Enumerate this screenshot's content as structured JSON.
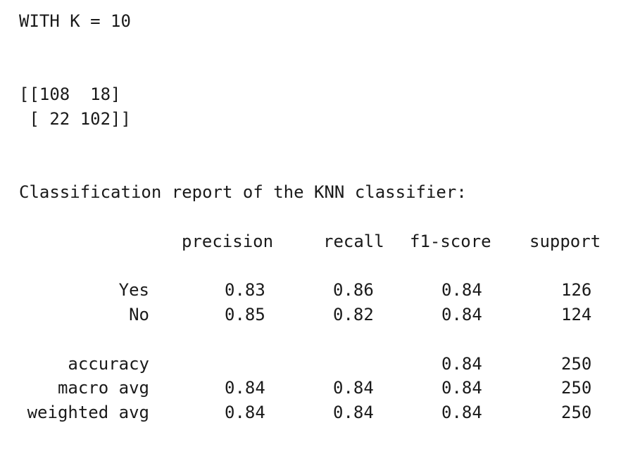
{
  "heading": "WITH K = 10",
  "confusion_matrix": {
    "row1": "[[108  18]",
    "row2": " [ 22 102]]"
  },
  "report_title": "Classification report of the KNN classifier:",
  "columns": {
    "precision": "precision",
    "recall": "recall",
    "f1": "f1-score",
    "support": "support"
  },
  "rows": [
    {
      "label": "Yes",
      "precision": "0.83",
      "recall": "0.86",
      "f1": "0.84",
      "support": "126"
    },
    {
      "label": "No",
      "precision": "0.85",
      "recall": "0.82",
      "f1": "0.84",
      "support": "124"
    },
    {
      "label": "accuracy",
      "precision": "",
      "recall": "",
      "f1": "0.84",
      "support": "250"
    },
    {
      "label": "macro avg",
      "precision": "0.84",
      "recall": "0.84",
      "f1": "0.84",
      "support": "250"
    },
    {
      "label": "weighted avg",
      "precision": "0.84",
      "recall": "0.84",
      "f1": "0.84",
      "support": "250"
    }
  ]
}
